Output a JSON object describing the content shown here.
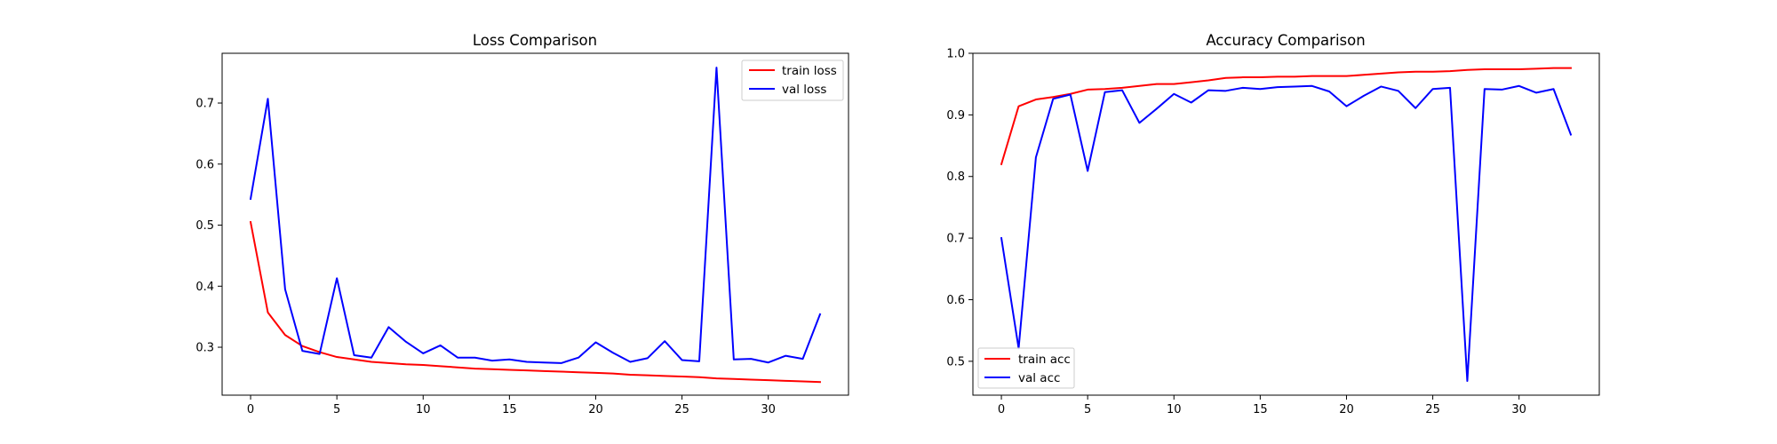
{
  "chart_data": [
    {
      "type": "line",
      "title": "Loss Comparison",
      "xlabel": "",
      "ylabel": "",
      "x": [
        0,
        1,
        2,
        3,
        4,
        5,
        6,
        7,
        8,
        9,
        10,
        11,
        12,
        13,
        14,
        15,
        16,
        17,
        18,
        19,
        20,
        21,
        22,
        23,
        24,
        25,
        26,
        27,
        28,
        29,
        30,
        31,
        32,
        33
      ],
      "xlim": [
        -1.65,
        34.65
      ],
      "ylim": [
        0.2215,
        0.7815
      ],
      "xticks": [
        0,
        5,
        10,
        15,
        20,
        25,
        30
      ],
      "xtick_labels": [
        "0",
        "5",
        "10",
        "15",
        "20",
        "25",
        "30"
      ],
      "yticks": [
        0.3,
        0.4,
        0.5,
        0.6,
        0.7
      ],
      "ytick_labels": [
        "0.3",
        "0.4",
        "0.5",
        "0.6",
        "0.7"
      ],
      "grid": false,
      "legend_position": "upper-right",
      "series": [
        {
          "name": "train loss",
          "color": "#ff0000",
          "values": [
            0.505,
            0.357,
            0.32,
            0.302,
            0.292,
            0.284,
            0.28,
            0.276,
            0.274,
            0.272,
            0.271,
            0.269,
            0.267,
            0.265,
            0.264,
            0.263,
            0.262,
            0.261,
            0.26,
            0.259,
            0.258,
            0.257,
            0.255,
            0.254,
            0.253,
            0.252,
            0.251,
            0.249,
            0.248,
            0.247,
            0.246,
            0.245,
            0.244,
            0.243
          ]
        },
        {
          "name": "val loss",
          "color": "#0000ff",
          "values": [
            0.543,
            0.707,
            0.395,
            0.294,
            0.289,
            0.413,
            0.287,
            0.283,
            0.333,
            0.309,
            0.29,
            0.303,
            0.283,
            0.283,
            0.278,
            0.28,
            0.276,
            0.275,
            0.274,
            0.283,
            0.308,
            0.291,
            0.276,
            0.282,
            0.31,
            0.279,
            0.277,
            0.758,
            0.28,
            0.281,
            0.275,
            0.286,
            0.281,
            0.354
          ]
        }
      ]
    },
    {
      "type": "line",
      "title": "Accuracy Comparison",
      "xlabel": "",
      "ylabel": "",
      "x": [
        0,
        1,
        2,
        3,
        4,
        5,
        6,
        7,
        8,
        9,
        10,
        11,
        12,
        13,
        14,
        15,
        16,
        17,
        18,
        19,
        20,
        21,
        22,
        23,
        24,
        25,
        26,
        27,
        28,
        29,
        30,
        31,
        32,
        33
      ],
      "xlim": [
        -1.65,
        34.65
      ],
      "ylim": [
        0.445,
        1.0
      ],
      "xticks": [
        0,
        5,
        10,
        15,
        20,
        25,
        30
      ],
      "xtick_labels": [
        "0",
        "5",
        "10",
        "15",
        "20",
        "25",
        "30"
      ],
      "yticks": [
        0.5,
        0.6,
        0.7,
        0.8,
        0.9,
        1.0
      ],
      "ytick_labels": [
        "0.5",
        "0.6",
        "0.7",
        "0.8",
        "0.9",
        "1.0"
      ],
      "grid": false,
      "legend_position": "lower-left",
      "series": [
        {
          "name": "train acc",
          "color": "#ff0000",
          "values": [
            0.82,
            0.914,
            0.925,
            0.929,
            0.934,
            0.941,
            0.942,
            0.944,
            0.947,
            0.95,
            0.95,
            0.953,
            0.956,
            0.96,
            0.961,
            0.961,
            0.962,
            0.962,
            0.963,
            0.963,
            0.963,
            0.965,
            0.967,
            0.969,
            0.97,
            0.97,
            0.971,
            0.973,
            0.974,
            0.974,
            0.974,
            0.975,
            0.976,
            0.976
          ]
        },
        {
          "name": "val acc",
          "color": "#0000ff",
          "values": [
            0.7,
            0.521,
            0.831,
            0.926,
            0.933,
            0.809,
            0.937,
            0.94,
            0.887,
            0.91,
            0.934,
            0.92,
            0.94,
            0.939,
            0.944,
            0.942,
            0.945,
            0.946,
            0.947,
            0.938,
            0.914,
            0.931,
            0.946,
            0.939,
            0.911,
            0.942,
            0.944,
            0.468,
            0.942,
            0.941,
            0.947,
            0.936,
            0.942,
            0.868
          ]
        }
      ]
    }
  ]
}
